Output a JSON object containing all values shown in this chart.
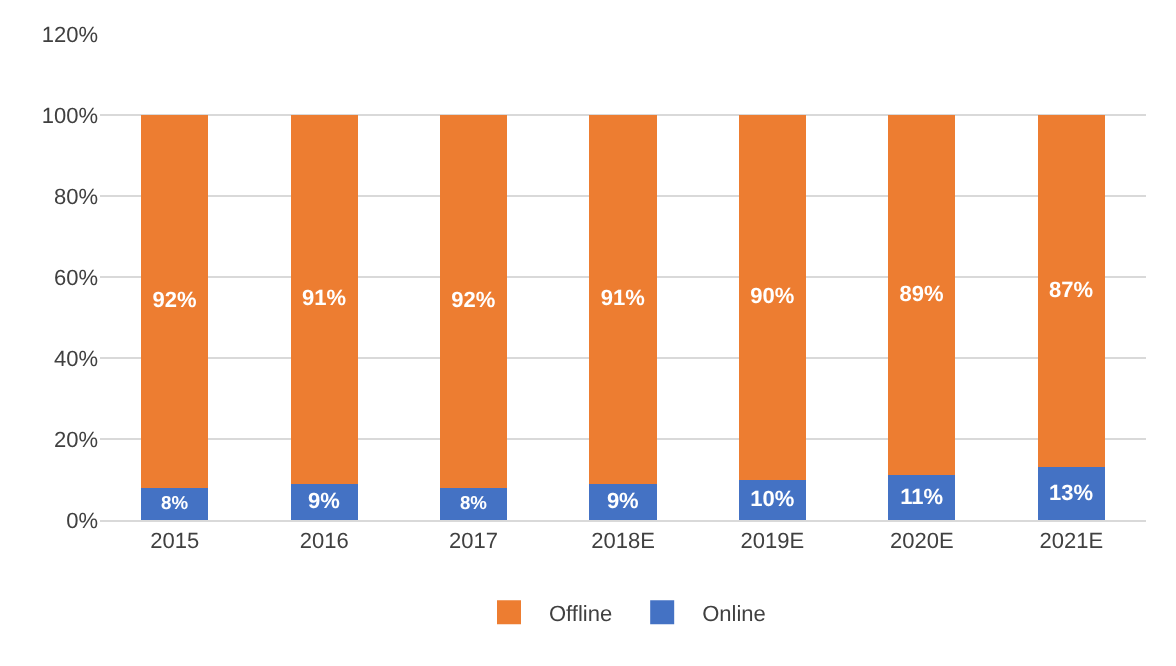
{
  "chart_data": {
    "type": "bar",
    "stacked": true,
    "categories": [
      "2015",
      "2016",
      "2017",
      "2018E",
      "2019E",
      "2020E",
      "2021E"
    ],
    "series": [
      {
        "name": "Online",
        "color": "#4472c4",
        "values": [
          8,
          9,
          8,
          9,
          10,
          11,
          13
        ],
        "value_labels": [
          "8%",
          "9%",
          "8%",
          "9%",
          "10%",
          "11%",
          "13%"
        ]
      },
      {
        "name": "Offline",
        "color": "#ed7d31",
        "values": [
          92,
          91,
          92,
          91,
          90,
          89,
          87
        ],
        "value_labels": [
          "92%",
          "91%",
          "92%",
          "91%",
          "90%",
          "89%",
          "87%"
        ]
      }
    ],
    "ylim": [
      0,
      120
    ],
    "yticks": [
      {
        "value": 0,
        "label": "0%"
      },
      {
        "value": 20,
        "label": "20%"
      },
      {
        "value": 40,
        "label": "40%"
      },
      {
        "value": 60,
        "label": "60%"
      },
      {
        "value": 80,
        "label": "80%"
      },
      {
        "value": 100,
        "label": "100%"
      },
      {
        "value": 120,
        "label": "120%"
      }
    ],
    "grid": "y",
    "legend": "bottom"
  }
}
